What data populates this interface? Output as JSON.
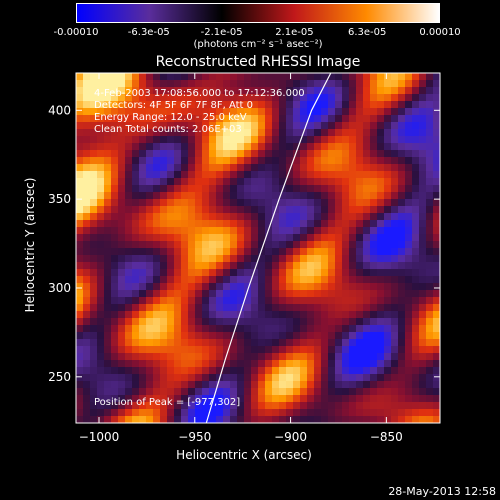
{
  "colorbar": {
    "labels": [
      "-0.00010",
      "-6.3e-05",
      "-2.1e-05",
      "2.1e-05",
      "6.3e-05",
      "0.00010"
    ],
    "units": "(photons cm⁻² s⁻¹ asec⁻²)",
    "colors": [
      "#0000ff",
      "#5a2d9c",
      "#000000",
      "#c0181a",
      "#ff8a00",
      "#ffffff"
    ]
  },
  "chart_data": {
    "type": "heatmap",
    "title": "Reconstructed RHESSI Image",
    "xlabel": "Heliocentric X (arcsec)",
    "ylabel": "Heliocentric Y (arcsec)",
    "xlim": [
      -1012,
      -822
    ],
    "ylim": [
      224,
      421
    ],
    "x_ticks": [
      -1000,
      -950,
      -900,
      -850
    ],
    "y_ticks": [
      250,
      300,
      350,
      400
    ],
    "limb_curve": [
      [
        -944,
        224
      ],
      [
        -934,
        260
      ],
      [
        -922,
        300
      ],
      [
        -906,
        350
      ],
      [
        -889,
        400
      ],
      [
        -879,
        421
      ]
    ],
    "peak": [
      -977,
      302
    ]
  },
  "info": {
    "time": "4-Feb-2003 17:08:56.000 to 17:12:36.000",
    "detectors": "Detectors: 4F 5F 6F 7F 8F, Att 0",
    "energy": "Energy Range: 12.0 - 25.0 keV",
    "clean": "Clean     Total counts: 2.06E+03",
    "peak": "Position of Peak = [-977,302]"
  },
  "timestamp": "28-May-2013 12:58"
}
